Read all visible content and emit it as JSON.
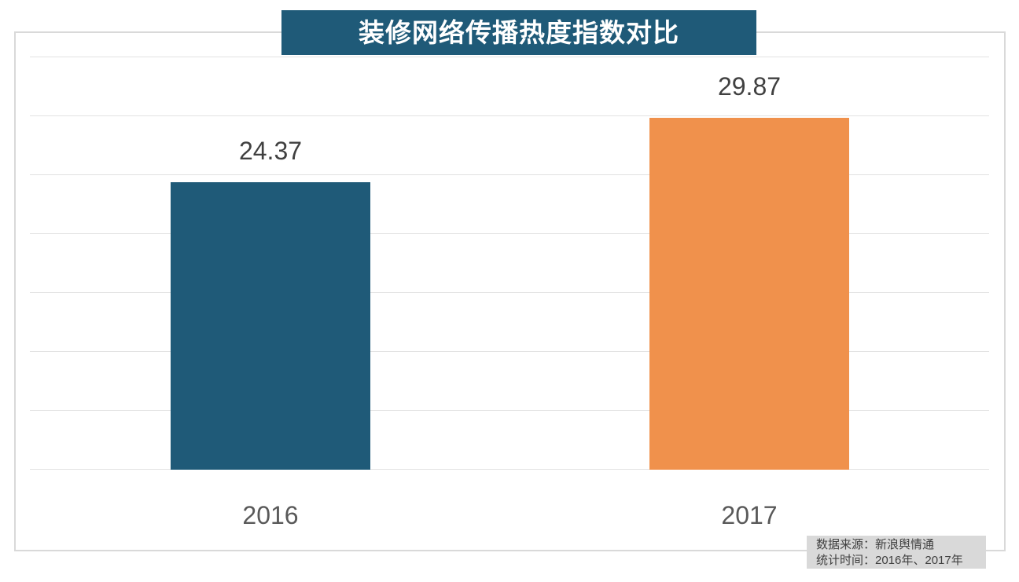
{
  "title": {
    "text": "装修网络传播热度指数对比",
    "bg_color": "#1f5a78",
    "text_color": "#ffffff"
  },
  "source_note": {
    "line1": "数据来源：新浪舆情通",
    "line2": "统计时间：2016年、2017年",
    "bg_color": "#d9d9d9",
    "text_color": "#404040"
  },
  "chart_data": {
    "type": "bar",
    "title": "装修网络传播热度指数对比",
    "categories": [
      "2016",
      "2017"
    ],
    "values": [
      24.37,
      29.87
    ],
    "value_labels": [
      "24.37",
      "29.87"
    ],
    "series_colors": [
      "#1f5a78",
      "#f0914c"
    ],
    "xlabel": "",
    "ylabel": "",
    "ylim": [
      0,
      35
    ],
    "grid_step": 5,
    "grid": true,
    "y_tick_labels_visible": false,
    "legend_position": "none",
    "gridline_color": "#e2e2e2"
  }
}
